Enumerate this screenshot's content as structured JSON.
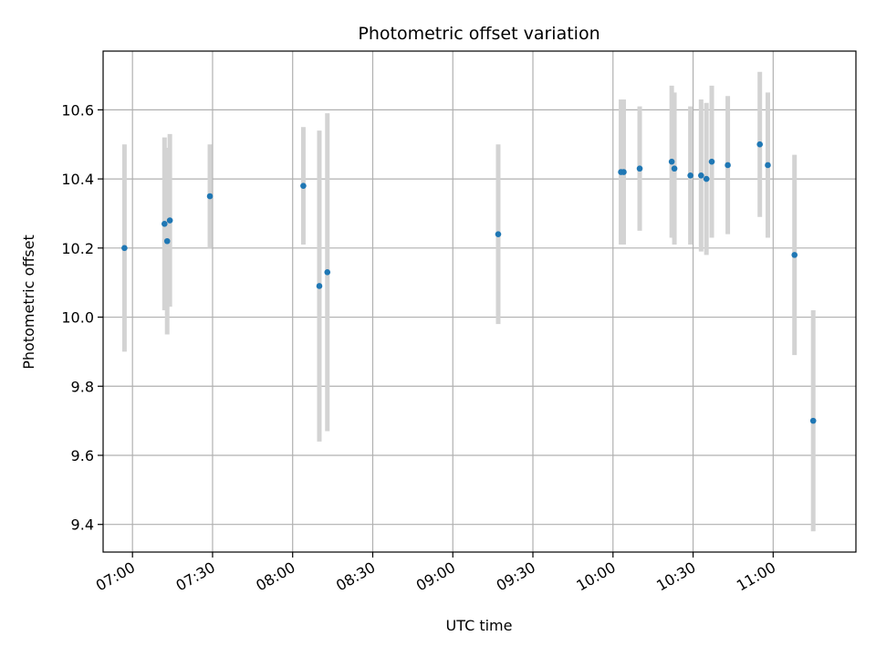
{
  "chart_data": {
    "type": "scatter",
    "title": "Photometric offset variation",
    "xlabel": "UTC time",
    "ylabel": "Photometric offset",
    "x_ticks": [
      "07:00",
      "07:30",
      "08:00",
      "08:30",
      "09:00",
      "09:30",
      "10:00",
      "10:30",
      "11:00"
    ],
    "y_ticks": [
      "9.4",
      "9.6",
      "9.8",
      "10.0",
      "10.2",
      "10.4",
      "10.6"
    ],
    "xlim": [
      "06:49",
      "11:31"
    ],
    "ylim": [
      9.32,
      10.77
    ],
    "grid": true,
    "colors": {
      "points": "#1f77b4",
      "error_bars": "#d3d3d3",
      "grid": "#b0b0b0"
    },
    "series": [
      {
        "points": [
          {
            "x": "06:57",
            "y": 10.2,
            "err": 0.3
          },
          {
            "x": "07:12",
            "y": 10.27,
            "err": 0.25
          },
          {
            "x": "07:13",
            "y": 10.22,
            "err": 0.27
          },
          {
            "x": "07:14",
            "y": 10.28,
            "err": 0.25
          },
          {
            "x": "07:29",
            "y": 10.35,
            "err": 0.15
          },
          {
            "x": "08:04",
            "y": 10.38,
            "err": 0.17
          },
          {
            "x": "08:10",
            "y": 10.09,
            "err": 0.45
          },
          {
            "x": "08:13",
            "y": 10.13,
            "err": 0.46
          },
          {
            "x": "09:17",
            "y": 10.24,
            "err": 0.26
          },
          {
            "x": "10:03",
            "y": 10.42,
            "err": 0.21
          },
          {
            "x": "10:04",
            "y": 10.42,
            "err": 0.21
          },
          {
            "x": "10:10",
            "y": 10.43,
            "err": 0.18
          },
          {
            "x": "10:22",
            "y": 10.45,
            "err": 0.22
          },
          {
            "x": "10:23",
            "y": 10.43,
            "err": 0.22
          },
          {
            "x": "10:29",
            "y": 10.41,
            "err": 0.2
          },
          {
            "x": "10:33",
            "y": 10.41,
            "err": 0.22
          },
          {
            "x": "10:35",
            "y": 10.4,
            "err": 0.22
          },
          {
            "x": "10:37",
            "y": 10.45,
            "err": 0.22
          },
          {
            "x": "10:43",
            "y": 10.44,
            "err": 0.2
          },
          {
            "x": "10:55",
            "y": 10.5,
            "err": 0.21
          },
          {
            "x": "10:58",
            "y": 10.44,
            "err": 0.21
          },
          {
            "x": "11:08",
            "y": 10.18,
            "err": 0.29
          },
          {
            "x": "11:15",
            "y": 9.7,
            "err": 0.32
          }
        ]
      }
    ]
  }
}
